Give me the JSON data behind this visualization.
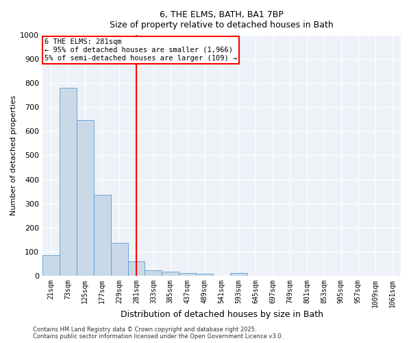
{
  "title_line1": "6, THE ELMS, BATH, BA1 7BP",
  "title_line2": "Size of property relative to detached houses in Bath",
  "xlabel": "Distribution of detached houses by size in Bath",
  "ylabel": "Number of detached properties",
  "bar_color": "#c9d9e8",
  "bar_edge_color": "#5b9bd5",
  "vline_color": "red",
  "annotation_text": "6 THE ELMS: 281sqm\n← 95% of detached houses are smaller (1,966)\n5% of semi-detached houses are larger (109) →",
  "annotation_box_color": "white",
  "annotation_box_edge_color": "red",
  "categories": [
    "21sqm",
    "73sqm",
    "125sqm",
    "177sqm",
    "229sqm",
    "281sqm",
    "333sqm",
    "385sqm",
    "437sqm",
    "489sqm",
    "541sqm",
    "593sqm",
    "645sqm",
    "697sqm",
    "749sqm",
    "801sqm",
    "853sqm",
    "905sqm",
    "957sqm",
    "1009sqm",
    "1061sqm"
  ],
  "values": [
    85,
    780,
    648,
    335,
    135,
    60,
    22,
    18,
    10,
    8,
    0,
    10,
    0,
    0,
    0,
    0,
    0,
    0,
    0,
    0,
    0
  ],
  "ylim": [
    0,
    1000
  ],
  "yticks": [
    0,
    100,
    200,
    300,
    400,
    500,
    600,
    700,
    800,
    900,
    1000
  ],
  "background_color": "#eef2f8",
  "footer_line1": "Contains HM Land Registry data © Crown copyright and database right 2025.",
  "footer_line2": "Contains public sector information licensed under the Open Government Licence v3.0."
}
